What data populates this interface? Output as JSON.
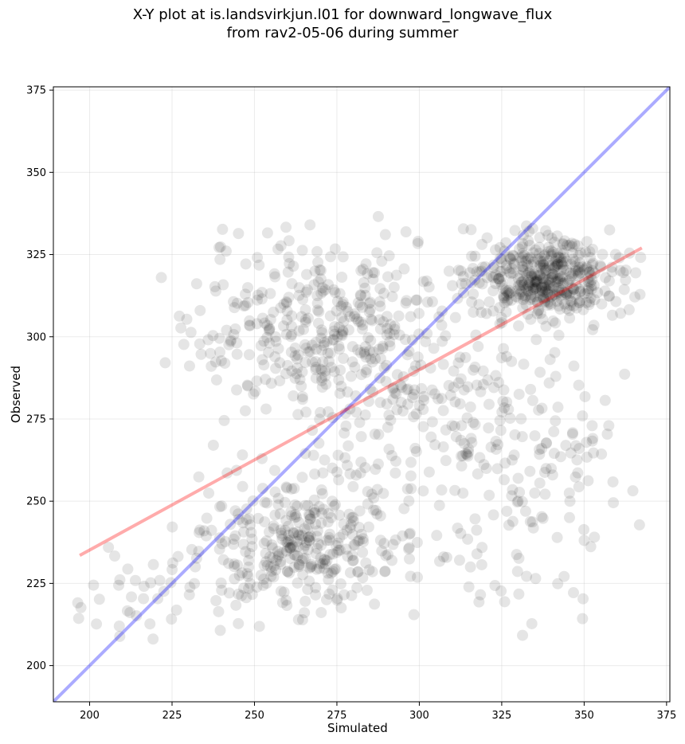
{
  "chart_data": {
    "type": "scatter",
    "title": "X-Y plot at is.landsvirkjun.l01 for downward_longwave_flux",
    "subtitle": "from rav2-05-06 during summer",
    "xlabel": "Simulated",
    "ylabel": "Observed",
    "xlim": [
      189,
      376
    ],
    "ylim": [
      189,
      376
    ],
    "xticks": [
      200,
      225,
      250,
      275,
      300,
      325,
      350,
      375
    ],
    "yticks": [
      200,
      225,
      250,
      275,
      300,
      325,
      350,
      375
    ],
    "grid": true,
    "point_color": "#000000",
    "point_alpha": 0.1,
    "identity_line": {
      "color": "#0000ff",
      "alpha": 0.33,
      "from": [
        189,
        189
      ],
      "to": [
        376,
        376
      ]
    },
    "fit_line": {
      "color": "#ff0000",
      "alpha": 0.33,
      "from": [
        197,
        233.5
      ],
      "to": [
        367.5,
        327
      ]
    },
    "clusters": [
      {
        "cx": 338,
        "cy": 318,
        "sx": 11,
        "sy": 6,
        "n": 430
      },
      {
        "cx": 265,
        "cy": 304,
        "sx": 20,
        "sy": 13,
        "n": 300
      },
      {
        "cx": 262,
        "cy": 236,
        "sx": 16,
        "sy": 10,
        "n": 330
      },
      {
        "cx": 325,
        "cy": 266,
        "sx": 20,
        "sy": 22,
        "n": 220
      },
      {
        "cx": 290,
        "cy": 284,
        "sx": 16,
        "sy": 20,
        "n": 160
      },
      {
        "cx": 215,
        "cy": 220,
        "sx": 12,
        "sy": 7,
        "n": 40
      }
    ]
  }
}
